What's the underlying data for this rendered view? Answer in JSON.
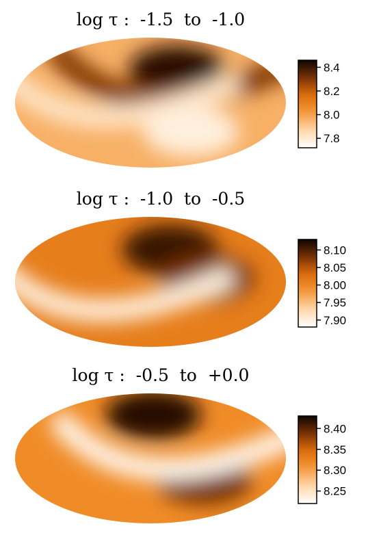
{
  "chart_data": [
    {
      "type": "heatmap",
      "projection": "aitoff-ellipse",
      "title": "log τ :  -1.5  to  -1.0",
      "colorbar": {
        "range": [
          7.72,
          8.46
        ],
        "ticks": [
          "8.4",
          "8.2",
          "8.0",
          "7.8"
        ],
        "tick_values": [
          8.4,
          8.2,
          8.0,
          7.8
        ]
      },
      "colormap": "white-orange-black",
      "features": [
        {
          "name": "dark spot",
          "lon": 40,
          "lat": 45,
          "value": 8.42
        },
        {
          "name": "dark band",
          "lon": 15,
          "lat": 20,
          "value": 8.3
        },
        {
          "name": "bright arc",
          "lon": -60,
          "lat": -5,
          "value": 7.82
        },
        {
          "name": "bright patch",
          "lon": 60,
          "lat": -40,
          "value": 7.78
        }
      ]
    },
    {
      "type": "heatmap",
      "projection": "aitoff-ellipse",
      "title": "log τ :  -1.0  to  -0.5",
      "colorbar": {
        "range": [
          7.88,
          8.13
        ],
        "ticks": [
          "8.10",
          "8.05",
          "8.00",
          "7.95",
          "7.90"
        ],
        "tick_values": [
          8.1,
          8.05,
          8.0,
          7.95,
          7.9
        ]
      },
      "colormap": "white-orange-black",
      "features": [
        {
          "name": "dark spot",
          "lon": 30,
          "lat": 45,
          "value": 8.11
        },
        {
          "name": "dark region",
          "lon": 75,
          "lat": 5,
          "value": 8.08
        },
        {
          "name": "bright arc",
          "lon": -70,
          "lat": -25,
          "value": 7.9
        }
      ]
    },
    {
      "type": "heatmap",
      "projection": "aitoff-ellipse",
      "title": "log τ :  -0.5  to  +0.0",
      "colorbar": {
        "range": [
          8.22,
          8.43
        ],
        "ticks": [
          "8.40",
          "8.35",
          "8.30",
          "8.25"
        ],
        "tick_values": [
          8.4,
          8.35,
          8.3,
          8.25
        ]
      },
      "colormap": "white-orange-black",
      "features": [
        {
          "name": "dark spot",
          "lon": 5,
          "lat": 60,
          "value": 8.42
        },
        {
          "name": "dark region",
          "lon": 75,
          "lat": -30,
          "value": 8.39
        },
        {
          "name": "bright band",
          "lon": 20,
          "lat": 0,
          "value": 8.23
        }
      ]
    }
  ]
}
